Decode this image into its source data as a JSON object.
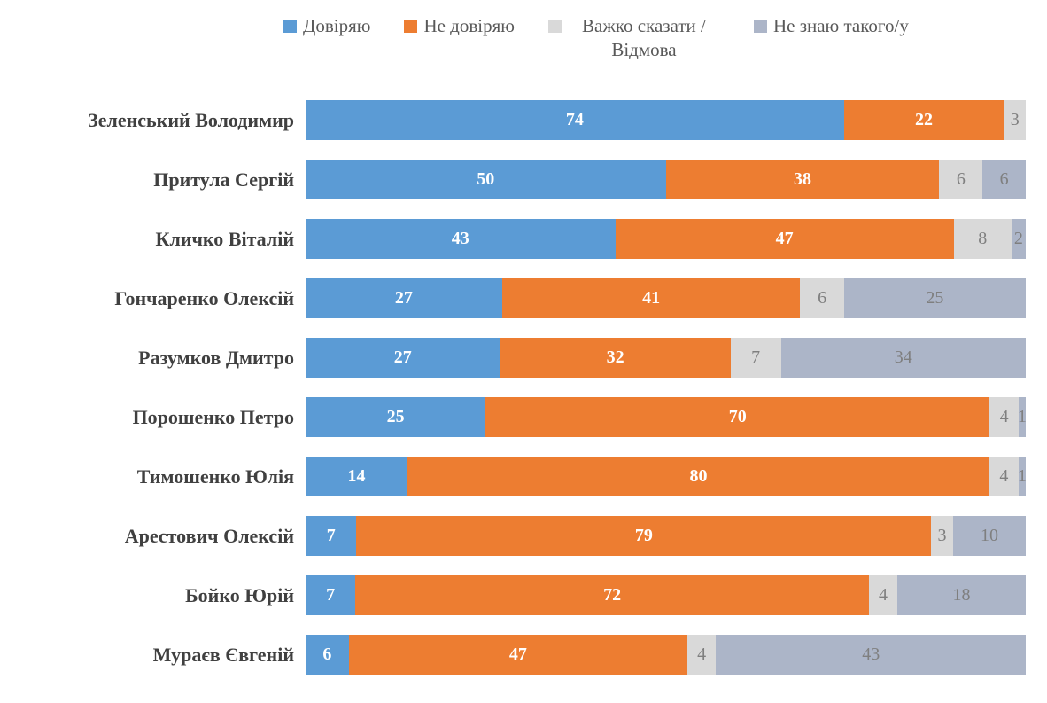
{
  "page": {
    "background": "#FFFFFF"
  },
  "chart_data": {
    "type": "bar",
    "orientation": "horizontal",
    "stacked": true,
    "normalized_to_100": true,
    "title": "",
    "xlabel": "",
    "ylabel": "",
    "xlim": [
      0,
      100
    ],
    "grid": false,
    "axes_visible": false,
    "legend_position": "top",
    "value_labels": "inside-center",
    "categories": [
      "Зеленський Володимир",
      "Притула Сергій",
      "Кличко Віталій",
      "Гончаренко Олексій",
      "Разумков Дмитро",
      "Порошенко Петро",
      "Тимошенко Юлія",
      "Арестович Олексій",
      "Бойко Юрій",
      "Мураєв Євгеній"
    ],
    "series": [
      {
        "name": "Довіряю",
        "color": "#5B9BD5",
        "label_color": "#FFFFFF",
        "values": [
          74,
          50,
          43,
          27,
          27,
          25,
          14,
          7,
          7,
          6
        ]
      },
      {
        "name": "Не довіряю",
        "color": "#ED7D31",
        "label_color": "#FFFFFF",
        "values": [
          22,
          38,
          47,
          41,
          32,
          70,
          80,
          79,
          72,
          47
        ]
      },
      {
        "name": "Важко сказати / Відмова",
        "color": "#D9D9D9",
        "label_color": "#7F7F7F",
        "values": [
          3,
          6,
          8,
          6,
          7,
          4,
          4,
          3,
          4,
          4
        ]
      },
      {
        "name": "Не знаю такого/у",
        "color": "#ACB5C8",
        "label_color": "#7F7F7F",
        "values": [
          0,
          6,
          2,
          25,
          34,
          1,
          1,
          10,
          18,
          43
        ]
      }
    ],
    "text_colors": {
      "legend_text": "#595959",
      "category_label": "#404040",
      "muted_value_label": "#7F7F7F"
    }
  }
}
